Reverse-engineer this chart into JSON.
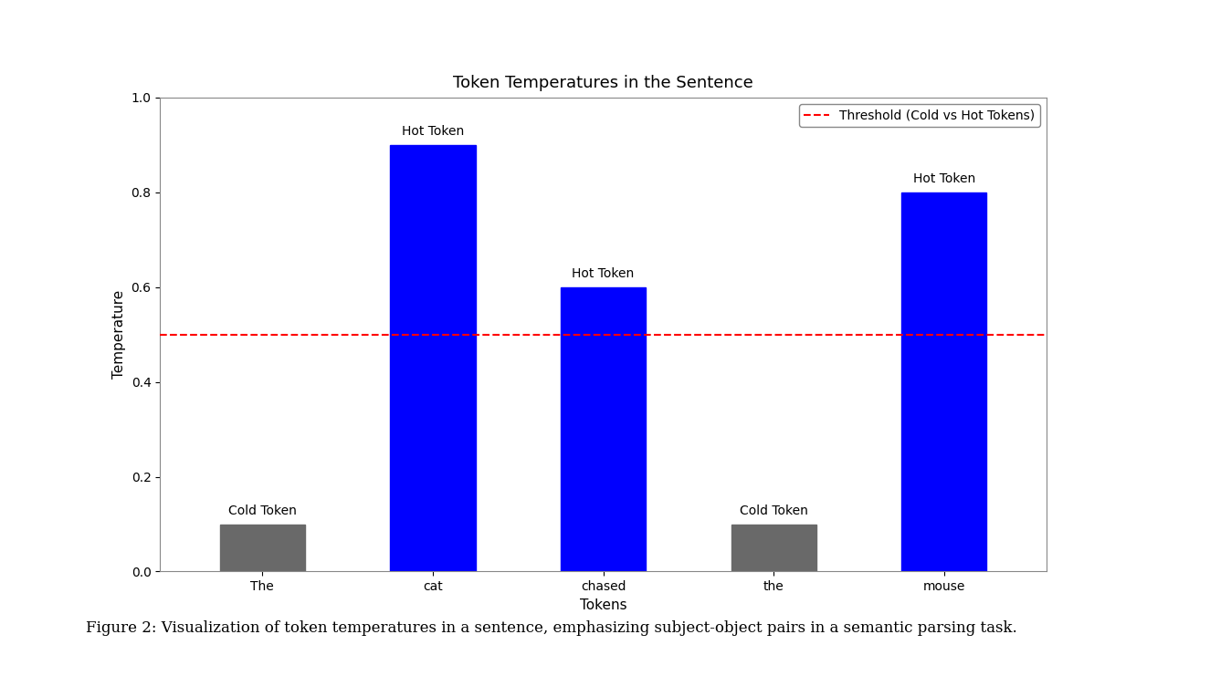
{
  "categories": [
    "The",
    "cat",
    "chased",
    "the",
    "mouse"
  ],
  "values": [
    0.1,
    0.9,
    0.6,
    0.1,
    0.8
  ],
  "bar_colors": [
    "#696969",
    "#0000ff",
    "#0000ff",
    "#696969",
    "#0000ff"
  ],
  "labels": [
    "Cold Token",
    "Hot Token",
    "Hot Token",
    "Cold Token",
    "Hot Token"
  ],
  "threshold": 0.5,
  "threshold_color": "#ff0000",
  "threshold_label": "Threshold (Cold vs Hot Tokens)",
  "title": "Token Temperatures in the Sentence",
  "xlabel": "Tokens",
  "ylabel": "Temperature",
  "ylim": [
    0.0,
    1.0
  ],
  "title_fontsize": 13,
  "axis_label_fontsize": 11,
  "tick_fontsize": 10,
  "annotation_fontsize": 10,
  "legend_fontsize": 10,
  "background_color": "#ffffff",
  "figure_caption": "Figure 2: Visualization of token temperatures in a sentence, emphasizing subject-object pairs in a semantic parsing task."
}
